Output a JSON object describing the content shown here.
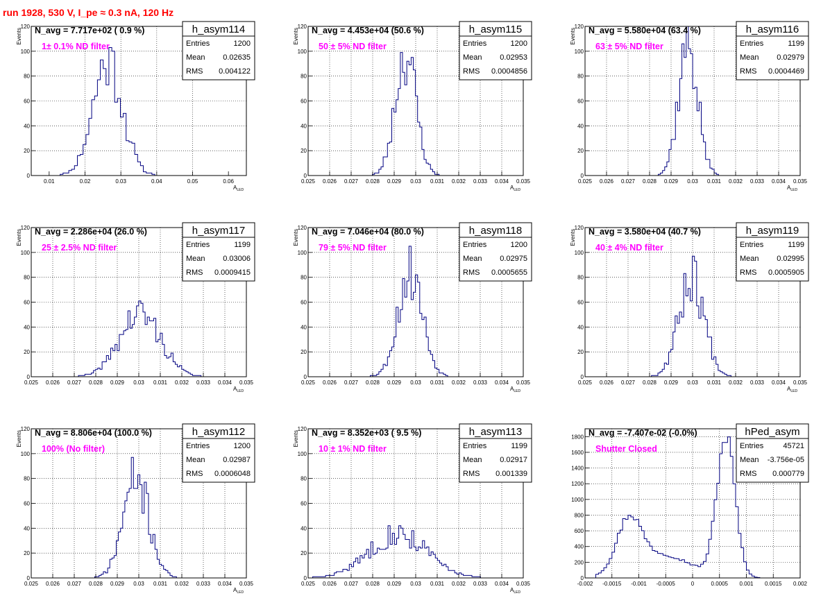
{
  "page": {
    "title": "run 1928,   530 V, I_pe ≈ 0.3 nA, 120 Hz"
  },
  "colors": {
    "line": "#000080",
    "annotation": "#ff00ff",
    "title": "#ff0000",
    "grid": "#000000"
  },
  "chart_data": [
    {
      "type": "histogram",
      "name": "h_asym114",
      "navg": "N_avg = 7.717e+02 ( 0.9 %)",
      "note": "1± 0.1% ND filter",
      "stats": {
        "entries": "1200",
        "mean": "0.02635",
        "rms": "0.004122"
      },
      "ylabel": "Events",
      "xlabel": "A_LED",
      "xlim": [
        0.005,
        0.065
      ],
      "ylim": [
        0,
        120
      ],
      "xticks": [
        "0.01",
        "0.02",
        "0.03",
        "0.04",
        "0.05",
        "0.06"
      ],
      "xtick_values": [
        0.01,
        0.02,
        0.03,
        0.04,
        0.05,
        0.06
      ],
      "yticks": [
        "0",
        "20",
        "40",
        "60",
        "80",
        "100",
        "120"
      ],
      "mode": "gauss",
      "gauss": {
        "mean": 0.02635,
        "rms": 0.004122,
        "entries": 1200
      },
      "binw": 0.0008,
      "seed": 11
    },
    {
      "type": "histogram",
      "name": "h_asym115",
      "navg": "N_avg = 4.453e+04 (50.6 %)",
      "note": "50 ± 5% ND filter",
      "stats": {
        "entries": "1200",
        "mean": "0.02953",
        "rms": "0.0004856"
      },
      "ylabel": "Events",
      "xlabel": "A_LED",
      "xlim": [
        0.025,
        0.035
      ],
      "ylim": [
        0,
        120
      ],
      "xticks": [
        "0.025",
        "0.026",
        "0.027",
        "0.028",
        "0.029",
        "0.03",
        "0.031",
        "0.032",
        "0.033",
        "0.034",
        "0.035"
      ],
      "xtick_values": [
        0.025,
        0.026,
        0.027,
        0.028,
        0.029,
        0.03,
        0.031,
        0.032,
        0.033,
        0.034,
        0.035
      ],
      "yticks": [
        "0",
        "20",
        "40",
        "60",
        "80",
        "100",
        "120"
      ],
      "mode": "gauss",
      "gauss": {
        "mean": 0.02953,
        "rms": 0.0004856,
        "entries": 1200
      },
      "binw": 0.0001,
      "seed": 23
    },
    {
      "type": "histogram",
      "name": "h_asym116",
      "navg": "N_avg = 5.580e+04 (63.4 %)",
      "note": "63 ± 5% ND filter",
      "stats": {
        "entries": "1199",
        "mean": "0.02979",
        "rms": "0.0004469"
      },
      "ylabel": "Events",
      "xlabel": "A_LED",
      "xlim": [
        0.025,
        0.035
      ],
      "ylim": [
        0,
        120
      ],
      "xticks": [
        "0.025",
        "0.026",
        "0.027",
        "0.028",
        "0.029",
        "0.03",
        "0.031",
        "0.032",
        "0.033",
        "0.034",
        "0.035"
      ],
      "xtick_values": [
        0.025,
        0.026,
        0.027,
        0.028,
        0.029,
        0.03,
        0.031,
        0.032,
        0.033,
        0.034,
        0.035
      ],
      "yticks": [
        "0",
        "20",
        "40",
        "60",
        "80",
        "100",
        "120"
      ],
      "mode": "gauss",
      "gauss": {
        "mean": 0.02979,
        "rms": 0.0004469,
        "entries": 1199
      },
      "binw": 0.0001,
      "seed": 37
    },
    {
      "type": "histogram",
      "name": "h_asym117",
      "navg": "N_avg = 2.286e+04 (26.0 %)",
      "note": "25 ± 2.5% ND filter",
      "stats": {
        "entries": "1199",
        "mean": "0.03006",
        "rms": "0.0009415"
      },
      "ylabel": "Events",
      "xlabel": "A_LED",
      "xlim": [
        0.025,
        0.035
      ],
      "ylim": [
        0,
        120
      ],
      "xticks": [
        "0.025",
        "0.026",
        "0.027",
        "0.028",
        "0.029",
        "0.03",
        "0.031",
        "0.032",
        "0.033",
        "0.034",
        "0.035"
      ],
      "xtick_values": [
        0.025,
        0.026,
        0.027,
        0.028,
        0.029,
        0.03,
        0.031,
        0.032,
        0.033,
        0.034,
        0.035
      ],
      "yticks": [
        "0",
        "20",
        "40",
        "60",
        "80",
        "100",
        "120"
      ],
      "mode": "gauss",
      "gauss": {
        "mean": 0.03006,
        "rms": 0.0009415,
        "entries": 1199
      },
      "binw": 0.0001,
      "seed": 41
    },
    {
      "type": "histogram",
      "name": "h_asym118",
      "navg": "N_avg = 7.046e+04 (80.0 %)",
      "note": "79 ± 5% ND filter",
      "stats": {
        "entries": "1200",
        "mean": "0.02975",
        "rms": "0.0005655"
      },
      "ylabel": "Events",
      "xlabel": "A_LED",
      "xlim": [
        0.025,
        0.035
      ],
      "ylim": [
        0,
        120
      ],
      "xticks": [
        "0.025",
        "0.026",
        "0.027",
        "0.028",
        "0.029",
        "0.03",
        "0.031",
        "0.032",
        "0.033",
        "0.034",
        "0.035"
      ],
      "xtick_values": [
        0.025,
        0.026,
        0.027,
        0.028,
        0.029,
        0.03,
        0.031,
        0.032,
        0.033,
        0.034,
        0.035
      ],
      "yticks": [
        "0",
        "20",
        "40",
        "60",
        "80",
        "100",
        "120"
      ],
      "mode": "gauss",
      "gauss": {
        "mean": 0.02975,
        "rms": 0.0005655,
        "entries": 1200
      },
      "binw": 0.0001,
      "seed": 53
    },
    {
      "type": "histogram",
      "name": "h_asym119",
      "navg": "N_avg = 3.580e+04 (40.7 %)",
      "note": "40 ± 4% ND filter",
      "stats": {
        "entries": "1199",
        "mean": "0.02995",
        "rms": "0.0005905"
      },
      "ylabel": "Events",
      "xlabel": "A_LED",
      "xlim": [
        0.025,
        0.035
      ],
      "ylim": [
        0,
        120
      ],
      "xticks": [
        "0.025",
        "0.026",
        "0.027",
        "0.028",
        "0.029",
        "0.03",
        "0.031",
        "0.032",
        "0.033",
        "0.034",
        "0.035"
      ],
      "xtick_values": [
        0.025,
        0.026,
        0.027,
        0.028,
        0.029,
        0.03,
        0.031,
        0.032,
        0.033,
        0.034,
        0.035
      ],
      "yticks": [
        "0",
        "20",
        "40",
        "60",
        "80",
        "100",
        "120"
      ],
      "mode": "gauss",
      "gauss": {
        "mean": 0.02995,
        "rms": 0.0005905,
        "entries": 1199
      },
      "binw": 0.0001,
      "seed": 67
    },
    {
      "type": "histogram",
      "name": "h_asym112",
      "navg": "N_avg = 8.806e+04 (100.0 %)",
      "note": "100% (No filter)",
      "stats": {
        "entries": "1200",
        "mean": "0.02987",
        "rms": "0.0006048"
      },
      "ylabel": "Events",
      "xlabel": "A_LED",
      "xlim": [
        0.025,
        0.035
      ],
      "ylim": [
        0,
        120
      ],
      "xticks": [
        "0.025",
        "0.026",
        "0.027",
        "0.028",
        "0.029",
        "0.03",
        "0.031",
        "0.032",
        "0.033",
        "0.034",
        "0.035"
      ],
      "xtick_values": [
        0.025,
        0.026,
        0.027,
        0.028,
        0.029,
        0.03,
        0.031,
        0.032,
        0.033,
        0.034,
        0.035
      ],
      "yticks": [
        "0",
        "20",
        "40",
        "60",
        "80",
        "100",
        "120"
      ],
      "mode": "gauss",
      "gauss": {
        "mean": 0.02987,
        "rms": 0.0006048,
        "entries": 1200
      },
      "binw": 0.0001,
      "seed": 71
    },
    {
      "type": "histogram",
      "name": "h_asym113",
      "navg": "N_avg = 8.352e+03 ( 9.5 %)",
      "note": "10 ± 1% ND filter",
      "stats": {
        "entries": "1199",
        "mean": "0.02917",
        "rms": "0.001339"
      },
      "ylabel": "Events",
      "xlabel": "A_LED",
      "xlim": [
        0.025,
        0.035
      ],
      "ylim": [
        0,
        120
      ],
      "xticks": [
        "0.025",
        "0.026",
        "0.027",
        "0.028",
        "0.029",
        "0.03",
        "0.031",
        "0.032",
        "0.033",
        "0.034",
        "0.035"
      ],
      "xtick_values": [
        0.025,
        0.026,
        0.027,
        0.028,
        0.029,
        0.03,
        0.031,
        0.032,
        0.033,
        0.034,
        0.035
      ],
      "yticks": [
        "0",
        "20",
        "40",
        "60",
        "80",
        "100",
        "120"
      ],
      "mode": "gauss",
      "gauss": {
        "mean": 0.02917,
        "rms": 0.001339,
        "entries": 1199
      },
      "binw": 0.0001,
      "seed": 83
    },
    {
      "type": "histogram",
      "name": "hPed_asym",
      "navg": "N_avg = -7.407e-02 (-0.0%)",
      "note": "Shutter Closed",
      "stats": {
        "entries": "45721",
        "mean": "-3.756e-05",
        "rms": "0.000779"
      },
      "ylabel": "",
      "xlabel": "",
      "xlim": [
        -0.002,
        0.002
      ],
      "ylim": [
        0,
        1900
      ],
      "xticks": [
        "-0.002",
        "-0.0015",
        "-0.001",
        "-0.0005",
        "0",
        "0.0005",
        "0.001",
        "0.0015",
        "0.002"
      ],
      "xtick_values": [
        -0.002,
        -0.0015,
        -0.001,
        -0.0005,
        0,
        0.0005,
        0.001,
        0.0015,
        0.002
      ],
      "yticks": [
        "0",
        "200",
        "400",
        "600",
        "800",
        "1000",
        "1200",
        "1400",
        "1600",
        "1800"
      ],
      "mode": "bimodal",
      "binw": 5e-05,
      "seed": 97,
      "components": [
        {
          "mean": 0.00062,
          "sigma": 0.00017,
          "height": 1780
        },
        {
          "mean": -0.00118,
          "sigma": 0.00022,
          "height": 640
        },
        {
          "mean": -0.0006,
          "sigma": 0.00055,
          "height": 300
        }
      ]
    }
  ]
}
